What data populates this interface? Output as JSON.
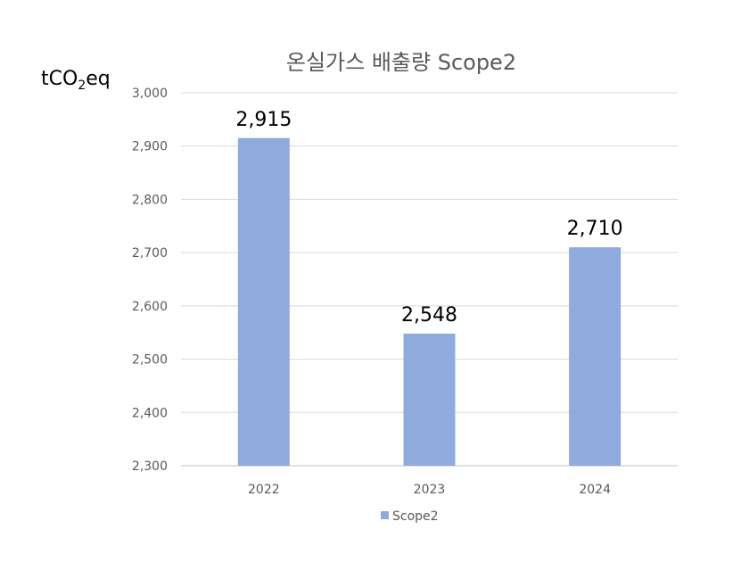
{
  "chart_data": {
    "type": "bar",
    "title": "온실가스 배출량 Scope2",
    "unit_label": {
      "prefix": "tCO",
      "subscript": "2",
      "suffix": "eq"
    },
    "categories": [
      "2022",
      "2023",
      "2024"
    ],
    "series": [
      {
        "name": "Scope2",
        "values": [
          2915,
          2548,
          2710
        ],
        "labels": [
          "2,915",
          "2,548",
          "2,710"
        ],
        "color": "#8faadc"
      }
    ],
    "ylim": [
      2300,
      3000
    ],
    "yticks": [
      2300,
      2400,
      2500,
      2600,
      2700,
      2800,
      2900,
      3000
    ],
    "ytick_labels": [
      "2,300",
      "2,400",
      "2,500",
      "2,600",
      "2,700",
      "2,800",
      "2,900",
      "3,000"
    ],
    "grid": true,
    "legend_position": "bottom"
  }
}
